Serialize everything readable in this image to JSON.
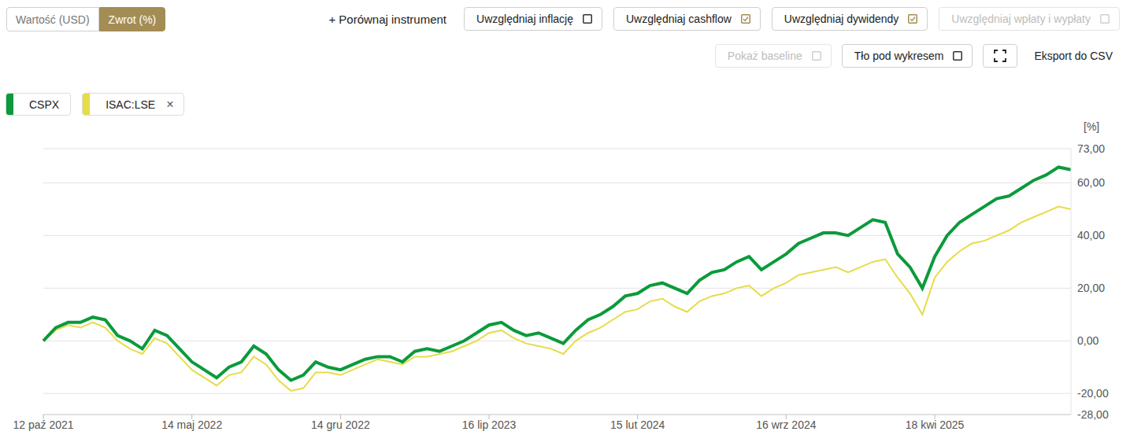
{
  "chart_data": {
    "type": "line",
    "ylabel": "[%]",
    "categories": [
      "12 paź 2021",
      null,
      null,
      null,
      null,
      null,
      null,
      null,
      null,
      null,
      null,
      null,
      "14 maj 2022",
      null,
      null,
      null,
      null,
      null,
      null,
      null,
      null,
      null,
      null,
      null,
      "14 gru 2022",
      null,
      null,
      null,
      null,
      null,
      null,
      null,
      null,
      null,
      null,
      null,
      "16 lip 2023",
      null,
      null,
      null,
      null,
      null,
      null,
      null,
      null,
      null,
      null,
      null,
      "15 lut 2024",
      null,
      null,
      null,
      null,
      null,
      null,
      null,
      null,
      null,
      null,
      null,
      "16 wrz 2024",
      null,
      null,
      null,
      null,
      null,
      null,
      null,
      null,
      null,
      null,
      null,
      "18 kwi 2025",
      null,
      null,
      null,
      null,
      null,
      null,
      null,
      null,
      null,
      null,
      null
    ],
    "series": [
      {
        "name": "CSPX",
        "color": "#0c9a3c",
        "line_style": "solid",
        "values": [
          0,
          5,
          7,
          7,
          9,
          8,
          2,
          0,
          -3,
          4,
          2,
          -3,
          -8,
          -11,
          -14,
          -10,
          -8,
          -2,
          -5,
          -11,
          -15,
          -13,
          -8,
          -10,
          -11,
          -9,
          -7,
          -6,
          -6,
          -8,
          -4,
          -3,
          -4,
          -2,
          0,
          3,
          6,
          7,
          4,
          2,
          3,
          1,
          -1,
          4,
          8,
          10,
          13,
          17,
          18,
          21,
          22,
          20,
          18,
          23,
          26,
          27,
          30,
          32,
          27,
          30,
          33,
          37,
          39,
          41,
          41,
          40,
          43,
          46,
          45,
          33,
          28,
          20,
          32,
          40,
          45,
          48,
          51,
          54,
          55,
          58,
          61,
          63,
          66,
          65
        ]
      },
      {
        "name": "ISAC:LSE",
        "color": "#e6dc48",
        "line_style": "solid",
        "values": [
          0,
          4,
          6,
          5,
          7,
          5,
          0,
          -3,
          -5,
          1,
          -1,
          -6,
          -11,
          -14,
          -17,
          -13,
          -12,
          -6,
          -9,
          -15,
          -19,
          -18,
          -12,
          -12,
          -13,
          -11,
          -9,
          -7,
          -8,
          -9,
          -6,
          -6,
          -5,
          -4,
          -2,
          0,
          3,
          4,
          1,
          -1,
          -2,
          -3,
          -5,
          0,
          3,
          5,
          8,
          11,
          12,
          15,
          16,
          13,
          11,
          15,
          17,
          18,
          20,
          21,
          17,
          20,
          22,
          25,
          26,
          27,
          28,
          26,
          28,
          30,
          31,
          24,
          18,
          10,
          24,
          30,
          34,
          37,
          38,
          40,
          42,
          45,
          47,
          49,
          51,
          50
        ]
      }
    ],
    "ylim": [
      -28,
      73
    ],
    "yticks": [
      {
        "value": -28,
        "label": "-28,00"
      },
      {
        "value": -20,
        "label": "-20,00"
      },
      {
        "value": 0,
        "label": "0,00"
      },
      {
        "value": 20,
        "label": "20,00"
      },
      {
        "value": 40,
        "label": "40,00"
      },
      {
        "value": 60,
        "label": "60,00"
      },
      {
        "value": 73,
        "label": "73,00"
      }
    ],
    "grid": "y",
    "legend": "top-left"
  },
  "toolbar": {
    "mode_buttons": [
      {
        "label": "Wartość (USD)",
        "active": false
      },
      {
        "label": "Zwrot (%)",
        "active": true
      }
    ],
    "compare": "+ Porównaj instrument",
    "options": [
      {
        "label": "Uwzględniaj inflację",
        "checked": false,
        "disabled": false
      },
      {
        "label": "Uwzględniaj cashflow",
        "checked": true,
        "disabled": false
      },
      {
        "label": "Uwzględniaj dywidendy",
        "checked": true,
        "disabled": false
      },
      {
        "label": "Uwzględniaj wpłaty i wypłaty",
        "checked": false,
        "disabled": true
      }
    ],
    "options2": [
      {
        "label": "Pokaż baseline",
        "checked": false,
        "disabled": true
      },
      {
        "label": "Tło pod wykresem",
        "checked": false,
        "disabled": false
      }
    ],
    "export": "Eksport do CSV",
    "remove": "×"
  }
}
